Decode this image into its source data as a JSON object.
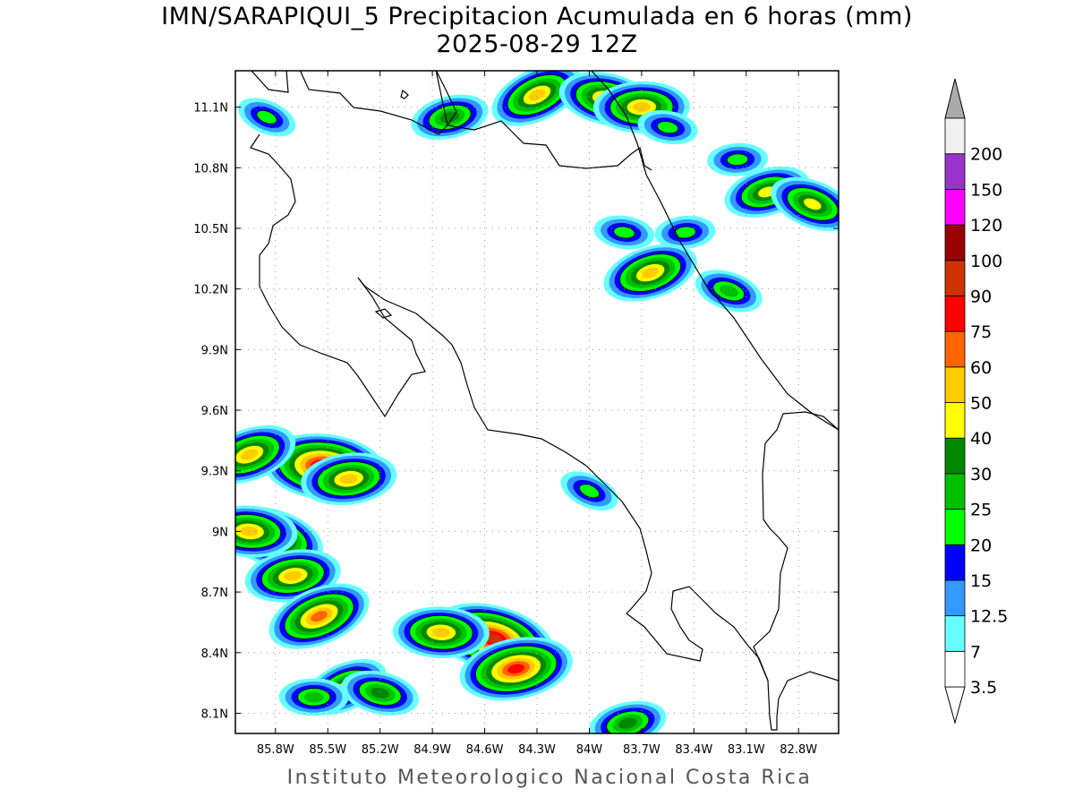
{
  "title": "IMN/SARAPIQUI_5 Precipitacion Acumulada en 6 horas (mm)",
  "subtitle": "2025-08-29 12Z",
  "footer": "Instituto Meteorologico Nacional Costa Rica",
  "map": {
    "lon_range": [
      -86.03,
      -82.57
    ],
    "lat_range": [
      8.0,
      11.28
    ],
    "x_ticks": [
      {
        "value": -85.8,
        "label": "85.8W"
      },
      {
        "value": -85.5,
        "label": "85.5W"
      },
      {
        "value": -85.2,
        "label": "85.2W"
      },
      {
        "value": -84.9,
        "label": "84.9W"
      },
      {
        "value": -84.6,
        "label": "84.6W"
      },
      {
        "value": -84.3,
        "label": "84.3W"
      },
      {
        "value": -84.0,
        "label": "84W"
      },
      {
        "value": -83.7,
        "label": "83.7W"
      },
      {
        "value": -83.4,
        "label": "83.4W"
      },
      {
        "value": -83.1,
        "label": "83.1W"
      },
      {
        "value": -82.8,
        "label": "82.8W"
      }
    ],
    "y_ticks": [
      {
        "value": 11.1,
        "label": "11.1N"
      },
      {
        "value": 10.8,
        "label": "10.8N"
      },
      {
        "value": 10.5,
        "label": "10.5N"
      },
      {
        "value": 10.2,
        "label": "10.2N"
      },
      {
        "value": 9.9,
        "label": "9.9N"
      },
      {
        "value": 9.6,
        "label": "9.6N"
      },
      {
        "value": 9.3,
        "label": "9.3N"
      },
      {
        "value": 9.0,
        "label": "9N"
      },
      {
        "value": 8.7,
        "label": "8.7N"
      },
      {
        "value": 8.4,
        "label": "8.4N"
      },
      {
        "value": 8.1,
        "label": "8.1N"
      }
    ],
    "grid": true,
    "precip_cells": [
      {
        "lon": -84.3,
        "lat": 11.16,
        "max_mm": 45
      },
      {
        "lon": -83.9,
        "lat": 11.14,
        "max_mm": 45
      },
      {
        "lon": -83.7,
        "lat": 11.1,
        "max_mm": 40
      },
      {
        "lon": -84.8,
        "lat": 11.05,
        "max_mm": 25
      },
      {
        "lon": -85.85,
        "lat": 11.05,
        "max_mm": 15
      },
      {
        "lon": -83.55,
        "lat": 11.0,
        "max_mm": 15
      },
      {
        "lon": -83.15,
        "lat": 10.84,
        "max_mm": 15
      },
      {
        "lon": -82.98,
        "lat": 10.68,
        "max_mm": 30
      },
      {
        "lon": -82.72,
        "lat": 10.62,
        "max_mm": 30
      },
      {
        "lon": -83.8,
        "lat": 10.48,
        "max_mm": 15
      },
      {
        "lon": -83.45,
        "lat": 10.48,
        "max_mm": 15
      },
      {
        "lon": -83.65,
        "lat": 10.28,
        "max_mm": 40
      },
      {
        "lon": -83.2,
        "lat": 10.19,
        "max_mm": 20
      },
      {
        "lon": -85.52,
        "lat": 9.32,
        "max_mm": 75
      },
      {
        "lon": -85.38,
        "lat": 9.26,
        "max_mm": 40
      },
      {
        "lon": -85.95,
        "lat": 9.38,
        "max_mm": 40
      },
      {
        "lon": -85.82,
        "lat": 8.97,
        "max_mm": 50
      },
      {
        "lon": -85.95,
        "lat": 9.0,
        "max_mm": 40
      },
      {
        "lon": -85.7,
        "lat": 8.78,
        "max_mm": 40
      },
      {
        "lon": -85.55,
        "lat": 8.58,
        "max_mm": 50
      },
      {
        "lon": -84.55,
        "lat": 8.47,
        "max_mm": 75
      },
      {
        "lon": -84.85,
        "lat": 8.5,
        "max_mm": 40
      },
      {
        "lon": -84.42,
        "lat": 8.32,
        "max_mm": 60
      },
      {
        "lon": -85.4,
        "lat": 8.23,
        "max_mm": 30
      },
      {
        "lon": -85.2,
        "lat": 8.2,
        "max_mm": 25
      },
      {
        "lon": -85.58,
        "lat": 8.18,
        "max_mm": 20
      },
      {
        "lon": -83.78,
        "lat": 8.05,
        "max_mm": 25
      },
      {
        "lon": -84.0,
        "lat": 9.2,
        "max_mm": 15
      }
    ]
  },
  "colorbar": {
    "levels": [
      {
        "label": "3.5",
        "color": "#ffffff"
      },
      {
        "label": "7",
        "color": "#66ffff"
      },
      {
        "label": "12.5",
        "color": "#3399ff"
      },
      {
        "label": "15",
        "color": "#0000ff"
      },
      {
        "label": "20",
        "color": "#00ff00"
      },
      {
        "label": "25",
        "color": "#00c000"
      },
      {
        "label": "30",
        "color": "#008800"
      },
      {
        "label": "40",
        "color": "#ffff00"
      },
      {
        "label": "50",
        "color": "#ffcc00"
      },
      {
        "label": "60",
        "color": "#ff6600"
      },
      {
        "label": "75",
        "color": "#ff0000"
      },
      {
        "label": "90",
        "color": "#cc3300"
      },
      {
        "label": "100",
        "color": "#990000"
      },
      {
        "label": "120",
        "color": "#ff00ff"
      },
      {
        "label": "150",
        "color": "#9933cc"
      },
      {
        "label": "200",
        "color": "#f0f0f0"
      }
    ],
    "over_color": "#aaaaaa"
  }
}
